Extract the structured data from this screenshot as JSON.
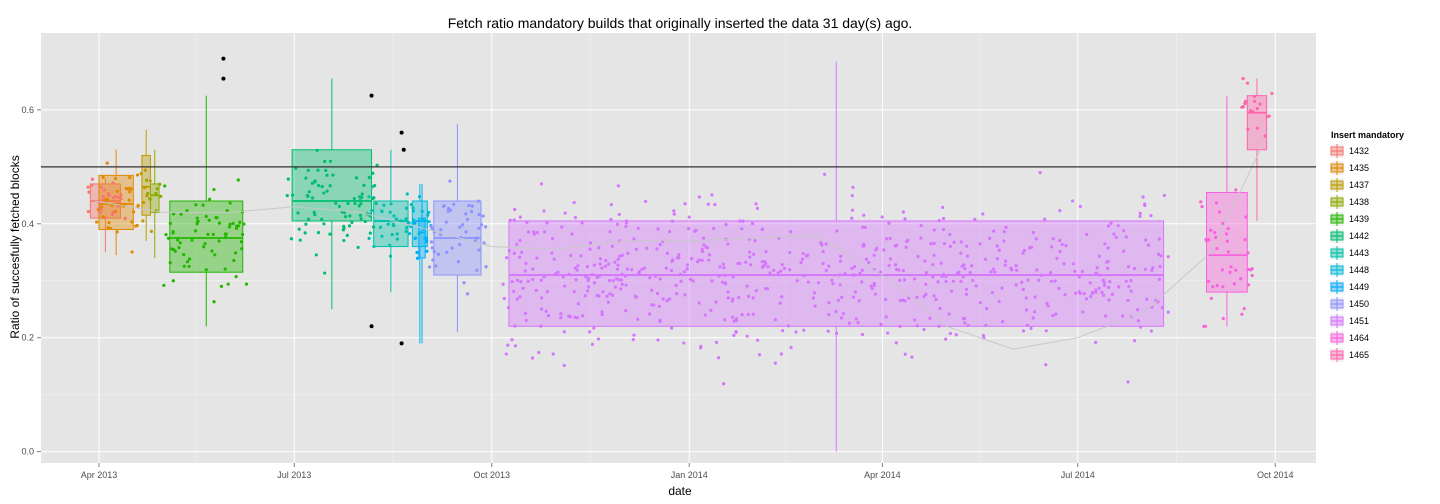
{
  "chart_data": {
    "type": "boxplot+scatter",
    "title": "Fetch ratio mandatory builds that originally inserted the data 31 day(s) ago.",
    "xlabel": "date",
    "ylabel": "Ratio of succesfully fetched blocks",
    "x_ticks": [
      "Apr 2013",
      "Jul 2013",
      "Oct 2013",
      "Jan 2014",
      "Apr 2014",
      "Jul 2014",
      "Oct 2014"
    ],
    "x_tick_dates": [
      "2013-04-01",
      "2013-07-01",
      "2013-10-01",
      "2014-01-01",
      "2014-04-01",
      "2014-07-01",
      "2014-10-01"
    ],
    "xlim": [
      "2013-03-05",
      "2014-10-20"
    ],
    "y_ticks": [
      "0.0",
      "0.2",
      "0.4",
      "0.6"
    ],
    "y_tick_values": [
      0.0,
      0.2,
      0.4,
      0.6
    ],
    "ylim": [
      -0.02,
      0.735
    ],
    "reference_line": 0.5,
    "grid": true,
    "legend": {
      "title": "Insert mandatory",
      "placement": "right"
    },
    "colors": {
      "panel_bg": "#e5e5e5",
      "grid": "#ffffff",
      "reference_line": "#333333",
      "smooth_line": "#c8c8c8",
      "outlier": "#000000"
    },
    "series": [
      {
        "name": "1432",
        "color": "#F8766D",
        "start": "2013-03-28",
        "end": "2013-04-11",
        "q1": 0.41,
        "median": 0.44,
        "q3": 0.47,
        "whisker_low": 0.35,
        "whisker_high": 0.48
      },
      {
        "name": "1435",
        "color": "#E18A00",
        "start": "2013-04-01",
        "end": "2013-04-17",
        "q1": 0.39,
        "median": 0.435,
        "q3": 0.485,
        "whisker_low": 0.345,
        "whisker_high": 0.53
      },
      {
        "name": "1437",
        "color": "#BE9C00",
        "start": "2013-04-21",
        "end": "2013-04-25",
        "q1": 0.415,
        "median": 0.465,
        "q3": 0.52,
        "whisker_low": 0.37,
        "whisker_high": 0.565
      },
      {
        "name": "1438",
        "color": "#8CAB00",
        "start": "2013-04-25",
        "end": "2013-04-29",
        "q1": 0.42,
        "median": 0.45,
        "q3": 0.47,
        "whisker_low": 0.34,
        "whisker_high": 0.53
      },
      {
        "name": "1439",
        "color": "#24B700",
        "start": "2013-05-04",
        "end": "2013-06-07",
        "q1": 0.315,
        "median": 0.375,
        "q3": 0.44,
        "whisker_low": 0.22,
        "whisker_high": 0.625
      },
      {
        "name": "1442",
        "color": "#00BE70",
        "start": "2013-06-30",
        "end": "2013-08-06",
        "q1": 0.405,
        "median": 0.44,
        "q3": 0.53,
        "whisker_low": 0.25,
        "whisker_high": 0.655
      },
      {
        "name": "1443",
        "color": "#00C1AB",
        "start": "2013-08-07",
        "end": "2013-08-23",
        "q1": 0.36,
        "median": 0.405,
        "q3": 0.44,
        "whisker_low": 0.28,
        "whisker_high": 0.53
      },
      {
        "name": "1448",
        "color": "#00BBDA",
        "start": "2013-08-25",
        "end": "2013-09-01",
        "q1": 0.36,
        "median": 0.405,
        "q3": 0.44,
        "whisker_low": 0.19,
        "whisker_high": 0.47
      },
      {
        "name": "1449",
        "color": "#00ACFC",
        "start": "2013-08-28",
        "end": "2013-08-31",
        "q1": 0.34,
        "median": 0.385,
        "q3": 0.41,
        "whisker_low": 0.19,
        "whisker_high": 0.47
      },
      {
        "name": "1450",
        "color": "#8B93FF",
        "start": "2013-09-04",
        "end": "2013-09-26",
        "q1": 0.31,
        "median": 0.375,
        "q3": 0.44,
        "whisker_low": 0.21,
        "whisker_high": 0.575
      },
      {
        "name": "1451",
        "color": "#D575FE",
        "start": "2013-10-09",
        "end": "2014-08-10",
        "q1": 0.22,
        "median": 0.31,
        "q3": 0.405,
        "whisker_low": 0.0,
        "whisker_high": 0.685
      },
      {
        "name": "1464",
        "color": "#F962DD",
        "start": "2014-08-30",
        "end": "2014-09-18",
        "q1": 0.28,
        "median": 0.345,
        "q3": 0.455,
        "whisker_low": 0.22,
        "whisker_high": 0.625
      },
      {
        "name": "1465",
        "color": "#FF65AC",
        "start": "2014-09-18",
        "end": "2014-09-27",
        "q1": 0.53,
        "median": 0.595,
        "q3": 0.625,
        "whisker_low": 0.405,
        "whisker_high": 0.655
      }
    ],
    "outliers": [
      {
        "date": "2013-05-29",
        "y": 0.69
      },
      {
        "date": "2013-05-29",
        "y": 0.655
      },
      {
        "date": "2013-08-06",
        "y": 0.625
      },
      {
        "date": "2013-08-06",
        "y": 0.22
      },
      {
        "date": "2013-08-20",
        "y": 0.56
      },
      {
        "date": "2013-08-21",
        "y": 0.53
      },
      {
        "date": "2013-08-20",
        "y": 0.19
      }
    ],
    "trend": [
      {
        "date": "2013-03-30",
        "y": 0.44
      },
      {
        "date": "2013-05-01",
        "y": 0.42
      },
      {
        "date": "2013-06-01",
        "y": 0.42
      },
      {
        "date": "2013-07-01",
        "y": 0.43
      },
      {
        "date": "2013-08-01",
        "y": 0.42
      },
      {
        "date": "2013-09-01",
        "y": 0.39
      },
      {
        "date": "2013-10-01",
        "y": 0.36
      },
      {
        "date": "2013-11-01",
        "y": 0.355
      },
      {
        "date": "2013-12-01",
        "y": 0.37
      },
      {
        "date": "2014-01-01",
        "y": 0.37
      },
      {
        "date": "2014-02-01",
        "y": 0.375
      },
      {
        "date": "2014-03-01",
        "y": 0.38
      },
      {
        "date": "2014-04-01",
        "y": 0.31
      },
      {
        "date": "2014-05-01",
        "y": 0.22
      },
      {
        "date": "2014-06-01",
        "y": 0.18
      },
      {
        "date": "2014-07-01",
        "y": 0.2
      },
      {
        "date": "2014-08-01",
        "y": 0.245
      },
      {
        "date": "2014-09-01",
        "y": 0.35
      },
      {
        "date": "2014-09-26",
        "y": 0.545
      }
    ]
  }
}
